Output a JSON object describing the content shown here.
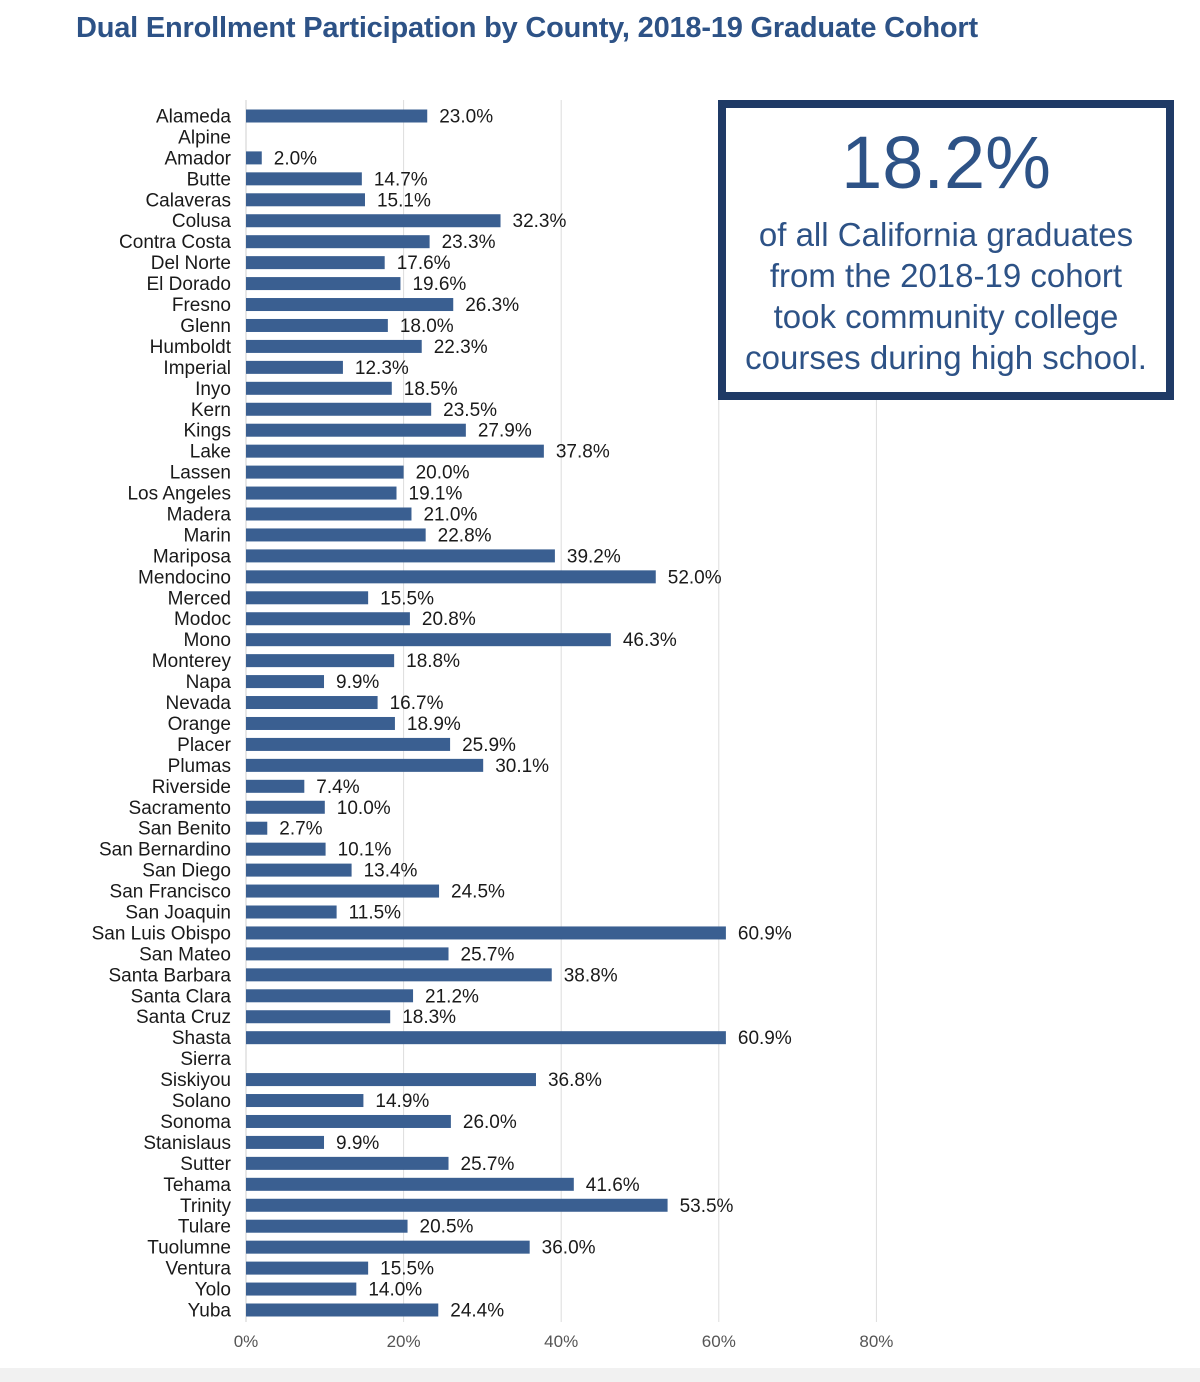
{
  "title": "Dual Enrollment Participation by County, 2018-19 Graduate Cohort",
  "callout": {
    "stat": "18.2%",
    "lines": [
      "of all California graduates",
      "from the 2018-19 cohort",
      "took community college",
      "courses during high school."
    ]
  },
  "colors": {
    "bar": "#3a5f91",
    "title": "#2d5286",
    "callout_border": "#1f3a66",
    "grid": "#dddddd"
  },
  "chart_data": {
    "type": "bar",
    "orientation": "horizontal",
    "title": "Dual Enrollment Participation by County, 2018-19 Graduate Cohort",
    "xlabel": "",
    "ylabel": "",
    "xlim": [
      0,
      80
    ],
    "xticks": [
      {
        "value": 0,
        "label": "0%"
      },
      {
        "value": 20,
        "label": "20%"
      },
      {
        "value": 40,
        "label": "40%"
      },
      {
        "value": 60,
        "label": "60%"
      },
      {
        "value": 80,
        "label": "80%"
      }
    ],
    "grid": true,
    "categories": [
      "Alameda",
      "Alpine",
      "Amador",
      "Butte",
      "Calaveras",
      "Colusa",
      "Contra Costa",
      "Del Norte",
      "El Dorado",
      "Fresno",
      "Glenn",
      "Humboldt",
      "Imperial",
      "Inyo",
      "Kern",
      "Kings",
      "Lake",
      "Lassen",
      "Los Angeles",
      "Madera",
      "Marin",
      "Mariposa",
      "Mendocino",
      "Merced",
      "Modoc",
      "Mono",
      "Monterey",
      "Napa",
      "Nevada",
      "Orange",
      "Placer",
      "Plumas",
      "Riverside",
      "Sacramento",
      "San Benito",
      "San Bernardino",
      "San Diego",
      "San Francisco",
      "San Joaquin",
      "San Luis Obispo",
      "San Mateo",
      "Santa Barbara",
      "Santa Clara",
      "Santa Cruz",
      "Shasta",
      "Sierra",
      "Siskiyou",
      "Solano",
      "Sonoma",
      "Stanislaus",
      "Sutter",
      "Tehama",
      "Trinity",
      "Tulare",
      "Tuolumne",
      "Ventura",
      "Yolo",
      "Yuba"
    ],
    "values": [
      23.0,
      null,
      2.0,
      14.7,
      15.1,
      32.3,
      23.3,
      17.6,
      19.6,
      26.3,
      18.0,
      22.3,
      12.3,
      18.5,
      23.5,
      27.9,
      37.8,
      20.0,
      19.1,
      21.0,
      22.8,
      39.2,
      52.0,
      15.5,
      20.8,
      46.3,
      18.8,
      9.9,
      16.7,
      18.9,
      25.9,
      30.1,
      7.4,
      10.0,
      2.7,
      10.1,
      13.4,
      24.5,
      11.5,
      60.9,
      25.7,
      38.8,
      21.2,
      18.3,
      60.9,
      null,
      36.8,
      14.9,
      26.0,
      9.9,
      25.7,
      41.6,
      53.5,
      20.5,
      36.0,
      15.5,
      14.0,
      24.4
    ],
    "value_labels": [
      "23.0%",
      "",
      "2.0%",
      "14.7%",
      "15.1%",
      "32.3%",
      "23.3%",
      "17.6%",
      "19.6%",
      "26.3%",
      "18.0%",
      "22.3%",
      "12.3%",
      "18.5%",
      "23.5%",
      "27.9%",
      "37.8%",
      "20.0%",
      "19.1%",
      "21.0%",
      "22.8%",
      "39.2%",
      "52.0%",
      "15.5%",
      "20.8%",
      "46.3%",
      "18.8%",
      "9.9%",
      "16.7%",
      "18.9%",
      "25.9%",
      "30.1%",
      "7.4%",
      "10.0%",
      "2.7%",
      "10.1%",
      "13.4%",
      "24.5%",
      "11.5%",
      "60.9%",
      "25.7%",
      "38.8%",
      "21.2%",
      "18.3%",
      "60.9%",
      "",
      "36.8%",
      "14.9%",
      "26.0%",
      "9.9%",
      "25.7%",
      "41.6%",
      "53.5%",
      "20.5%",
      "36.0%",
      "15.5%",
      "14.0%",
      "24.4%"
    ]
  }
}
